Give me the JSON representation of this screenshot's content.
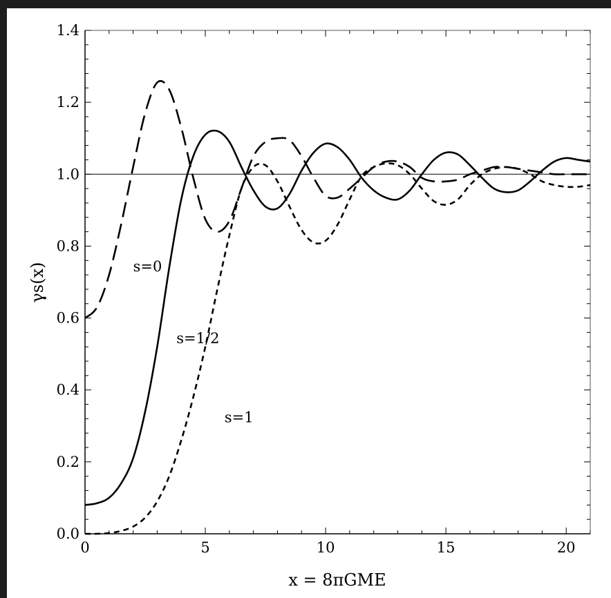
{
  "chart_data": {
    "type": "line",
    "xlabel": "x = 8πGME",
    "ylabel": "γs(x)",
    "xlim": [
      0,
      21
    ],
    "ylim": [
      0,
      1.4
    ],
    "x_ticks": [
      "0",
      "5",
      "10",
      "15",
      "20"
    ],
    "y_ticks": [
      "0.0",
      "0.2",
      "0.4",
      "0.6",
      "0.8",
      "1.0",
      "1.2",
      "1.4"
    ],
    "grid": false,
    "legend": "none",
    "reference_line": {
      "y": 1.0
    },
    "series": [
      {
        "name": "s=0",
        "style": "long-dash",
        "x": [
          0,
          0.5,
          1,
          1.5,
          2,
          2.5,
          3,
          3.5,
          4,
          4.5,
          5,
          5.5,
          6,
          6.5,
          7,
          7.5,
          8,
          8.5,
          9,
          9.5,
          10,
          10.5,
          11,
          11.5,
          12,
          12.5,
          13,
          13.5,
          14,
          14.5,
          15,
          15.5,
          16,
          16.5,
          17,
          17.5,
          18,
          18.5,
          19,
          19.5,
          20,
          20.5,
          21
        ],
        "y": [
          0.6,
          0.63,
          0.72,
          0.86,
          1.02,
          1.17,
          1.255,
          1.235,
          1.13,
          0.99,
          0.875,
          0.84,
          0.87,
          0.96,
          1.05,
          1.09,
          1.1,
          1.095,
          1.05,
          0.99,
          0.94,
          0.935,
          0.96,
          0.99,
          1.02,
          1.035,
          1.035,
          1.02,
          0.99,
          0.98,
          0.98,
          0.985,
          1.0,
          1.01,
          1.02,
          1.02,
          1.015,
          1.01,
          1.005,
          1.0,
          1.0,
          1.0,
          1.0
        ]
      },
      {
        "name": "s=1/2",
        "style": "solid",
        "x": [
          0,
          0.5,
          1,
          1.5,
          2,
          2.5,
          3,
          3.5,
          4,
          4.5,
          5,
          5.5,
          6,
          6.5,
          7,
          7.5,
          8,
          8.5,
          9,
          9.5,
          10,
          10.5,
          11,
          11.5,
          12,
          12.5,
          13,
          13.5,
          14,
          14.5,
          15,
          15.5,
          16,
          16.5,
          17,
          17.5,
          18,
          18.5,
          19,
          19.5,
          20,
          20.5,
          21
        ],
        "y": [
          0.08,
          0.085,
          0.1,
          0.14,
          0.21,
          0.34,
          0.52,
          0.74,
          0.93,
          1.05,
          1.11,
          1.12,
          1.09,
          1.02,
          0.955,
          0.91,
          0.905,
          0.945,
          1.01,
          1.06,
          1.085,
          1.075,
          1.04,
          0.99,
          0.955,
          0.935,
          0.93,
          0.955,
          1.0,
          1.04,
          1.06,
          1.055,
          1.025,
          0.99,
          0.96,
          0.95,
          0.955,
          0.98,
          1.01,
          1.035,
          1.045,
          1.04,
          1.035
        ]
      },
      {
        "name": "s=1",
        "style": "short-dash",
        "x": [
          0,
          0.5,
          1,
          1.5,
          2,
          2.5,
          3,
          3.5,
          4,
          4.5,
          5,
          5.5,
          6,
          6.5,
          7,
          7.5,
          8,
          8.5,
          9,
          9.5,
          10,
          10.5,
          11,
          11.5,
          12,
          12.5,
          13,
          13.5,
          14,
          14.5,
          15,
          15.5,
          16,
          16.5,
          17,
          17.5,
          18,
          18.5,
          19,
          19.5,
          20,
          20.5,
          21
        ],
        "y": [
          0.0,
          0.0,
          0.002,
          0.008,
          0.02,
          0.045,
          0.09,
          0.16,
          0.26,
          0.38,
          0.52,
          0.68,
          0.83,
          0.96,
          1.02,
          1.025,
          0.98,
          0.91,
          0.845,
          0.81,
          0.815,
          0.86,
          0.93,
          0.995,
          1.02,
          1.03,
          1.025,
          1.0,
          0.96,
          0.925,
          0.915,
          0.93,
          0.97,
          1.0,
          1.015,
          1.02,
          1.015,
          1.0,
          0.98,
          0.97,
          0.965,
          0.965,
          0.97
        ]
      }
    ],
    "annotations": [
      {
        "text": "s=0",
        "x": 2.0,
        "y": 0.73
      },
      {
        "text": "s=1/2",
        "x": 3.8,
        "y": 0.53
      },
      {
        "text": "s=1",
        "x": 5.8,
        "y": 0.31
      }
    ]
  }
}
